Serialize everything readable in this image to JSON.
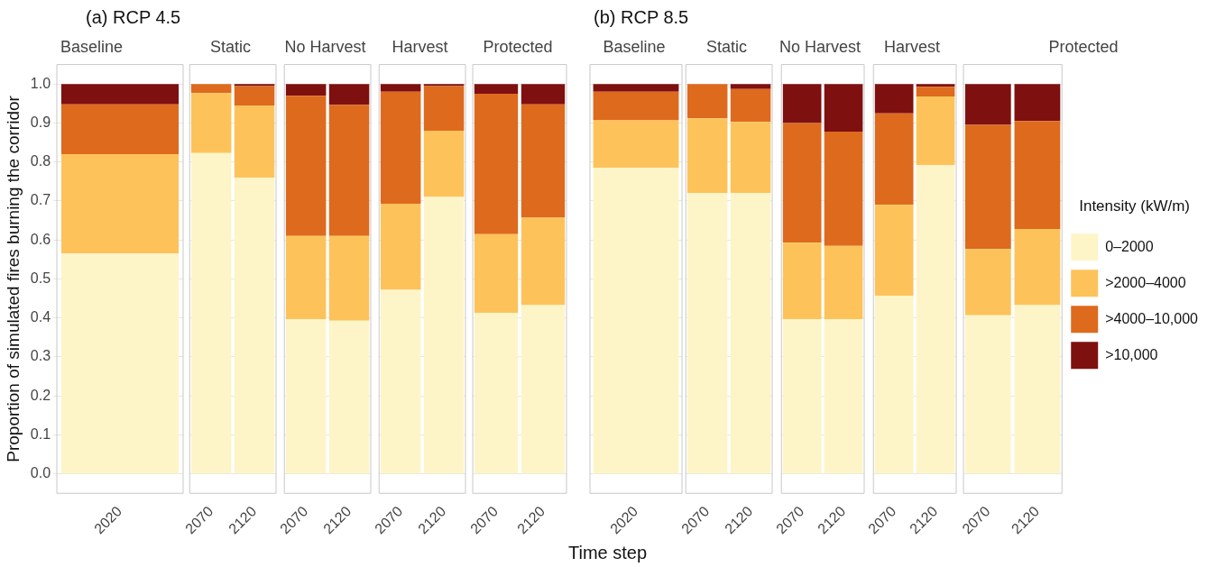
{
  "chart_data": [
    {
      "type": "bar",
      "stacked": true,
      "title": "Baseline",
      "annotations": [
        "(a) RCP 4.5"
      ],
      "ylabel": "Proportion of simulated fires burning the corridor",
      "categories": [
        "2020"
      ],
      "grid": "y",
      "ylim": [
        -0.05,
        1.05
      ],
      "yticks": [
        {
          "value": 0,
          "label": "0.0"
        },
        {
          "value": 0.1,
          "label": "0.1"
        },
        {
          "value": 0.2,
          "label": "0.2"
        },
        {
          "value": 0.3,
          "label": "0.3"
        },
        {
          "value": 0.4,
          "label": "0.4"
        },
        {
          "value": 0.5,
          "label": "0.5"
        },
        {
          "value": 0.6,
          "label": "0.6"
        },
        {
          "value": 0.7,
          "label": "0.7"
        },
        {
          "value": 0.8,
          "label": "0.8"
        },
        {
          "value": 0.9,
          "label": "0.9"
        },
        {
          "value": 1,
          "label": "1.0"
        }
      ],
      "series": [
        {
          "color": "#fdf5c8",
          "values": [
            0.565
          ]
        },
        {
          "color": "#fdc35a",
          "values": [
            0.255
          ]
        },
        {
          "color": "#de6a1d",
          "values": [
            0.128
          ]
        },
        {
          "color": "#7f1010",
          "values": [
            0.052
          ]
        }
      ]
    },
    {
      "type": "bar",
      "stacked": true,
      "title": "Static",
      "categories": [
        "2070",
        "2120"
      ],
      "grid": "y",
      "tick_labels": "x",
      "ylim": [
        -0.05,
        1.05
      ],
      "series": [
        {
          "color": "#fdf5c8",
          "values": [
            0.823,
            0.76
          ]
        },
        {
          "color": "#fdc35a",
          "values": [
            0.154,
            0.185
          ]
        },
        {
          "color": "#de6a1d",
          "values": [
            0.023,
            0.05
          ]
        },
        {
          "color": "#7f1010",
          "values": [
            0,
            0.005
          ]
        }
      ]
    },
    {
      "type": "bar",
      "stacked": true,
      "title": "No Harvest",
      "categories": [
        "2070",
        "2120"
      ],
      "grid": "y",
      "tick_labels": "x",
      "ylim": [
        -0.05,
        1.05
      ],
      "series": [
        {
          "color": "#fdf5c8",
          "values": [
            0.397,
            0.393
          ]
        },
        {
          "color": "#fdc35a",
          "values": [
            0.213,
            0.217
          ]
        },
        {
          "color": "#de6a1d",
          "values": [
            0.36,
            0.337
          ]
        },
        {
          "color": "#7f1010",
          "values": [
            0.03,
            0.053
          ]
        }
      ]
    },
    {
      "type": "bar",
      "stacked": true,
      "title": "Harvest",
      "categories": [
        "2070",
        "2120"
      ],
      "grid": "y",
      "tick_labels": "x",
      "ylim": [
        -0.05,
        1.05
      ],
      "series": [
        {
          "color": "#fdf5c8",
          "values": [
            0.472,
            0.71
          ]
        },
        {
          "color": "#fdc35a",
          "values": [
            0.221,
            0.17
          ]
        },
        {
          "color": "#de6a1d",
          "values": [
            0.287,
            0.115
          ]
        },
        {
          "color": "#7f1010",
          "values": [
            0.02,
            0.005
          ]
        }
      ]
    },
    {
      "type": "bar",
      "stacked": true,
      "title": "Protected",
      "categories": [
        "2070",
        "2120"
      ],
      "grid": "y",
      "tick_labels": "x",
      "ylim": [
        -0.05,
        1.05
      ],
      "series": [
        {
          "color": "#fdf5c8",
          "values": [
            0.413,
            0.433
          ]
        },
        {
          "color": "#fdc35a",
          "values": [
            0.202,
            0.224
          ]
        },
        {
          "color": "#de6a1d",
          "values": [
            0.36,
            0.291
          ]
        },
        {
          "color": "#7f1010",
          "values": [
            0.025,
            0.052
          ]
        }
      ]
    },
    {
      "type": "bar",
      "stacked": true,
      "title": "Baseline",
      "annotations": [
        "(b) RCP 8.5"
      ],
      "xlabel": "Time step",
      "categories": [
        "2020"
      ],
      "grid": "y",
      "tick_labels": "x",
      "ylim": [
        -0.05,
        1.05
      ],
      "series": [
        {
          "color": "#fdf5c8",
          "values": [
            0.785
          ]
        },
        {
          "color": "#fdc35a",
          "values": [
            0.122
          ]
        },
        {
          "color": "#de6a1d",
          "values": [
            0.073
          ]
        },
        {
          "color": "#7f1010",
          "values": [
            0.02
          ]
        }
      ]
    },
    {
      "type": "bar",
      "stacked": true,
      "title": "Static",
      "categories": [
        "2070",
        "2120"
      ],
      "grid": "y",
      "tick_labels": "x",
      "ylim": [
        -0.05,
        1.05
      ],
      "series": [
        {
          "color": "#fdf5c8",
          "values": [
            0.72,
            0.72
          ]
        },
        {
          "color": "#fdc35a",
          "values": [
            0.192,
            0.183
          ]
        },
        {
          "color": "#de6a1d",
          "values": [
            0.088,
            0.084
          ]
        },
        {
          "color": "#7f1010",
          "values": [
            0,
            0.013
          ]
        }
      ]
    },
    {
      "type": "bar",
      "stacked": true,
      "title": "No Harvest",
      "categories": [
        "2070",
        "2120"
      ],
      "grid": "y",
      "tick_labels": "x",
      "ylim": [
        -0.05,
        1.05
      ],
      "series": [
        {
          "color": "#fdf5c8",
          "values": [
            0.397,
            0.397
          ]
        },
        {
          "color": "#fdc35a",
          "values": [
            0.196,
            0.188
          ]
        },
        {
          "color": "#de6a1d",
          "values": [
            0.307,
            0.293
          ]
        },
        {
          "color": "#7f1010",
          "values": [
            0.1,
            0.122
          ]
        }
      ]
    },
    {
      "type": "bar",
      "stacked": true,
      "title": "Harvest",
      "categories": [
        "2070",
        "2120"
      ],
      "grid": "y",
      "tick_labels": "x",
      "ylim": [
        -0.05,
        1.05
      ],
      "series": [
        {
          "color": "#fdf5c8",
          "values": [
            0.457,
            0.792
          ]
        },
        {
          "color": "#fdc35a",
          "values": [
            0.233,
            0.176
          ]
        },
        {
          "color": "#de6a1d",
          "values": [
            0.235,
            0.025
          ]
        },
        {
          "color": "#7f1010",
          "values": [
            0.075,
            0.007
          ]
        }
      ]
    },
    {
      "type": "bar",
      "stacked": true,
      "title": "Protected",
      "categories": [
        "2070",
        "2120"
      ],
      "grid": "y",
      "tick_labels": "x",
      "ylim": [
        -0.05,
        1.05
      ],
      "legend": "right",
      "legend_title": "Intensity (kW/m)",
      "series": [
        {
          "name": "0–2000",
          "color": "#fdf5c8",
          "values": [
            0.407,
            0.433
          ]
        },
        {
          "name": ">2000–4000",
          "color": "#fdc35a",
          "values": [
            0.17,
            0.195
          ]
        },
        {
          "name": ">4000–10,000",
          "color": "#de6a1d",
          "values": [
            0.318,
            0.277
          ]
        },
        {
          "name": ">10,000",
          "color": "#7f1010",
          "values": [
            0.105,
            0.095
          ]
        }
      ]
    }
  ]
}
